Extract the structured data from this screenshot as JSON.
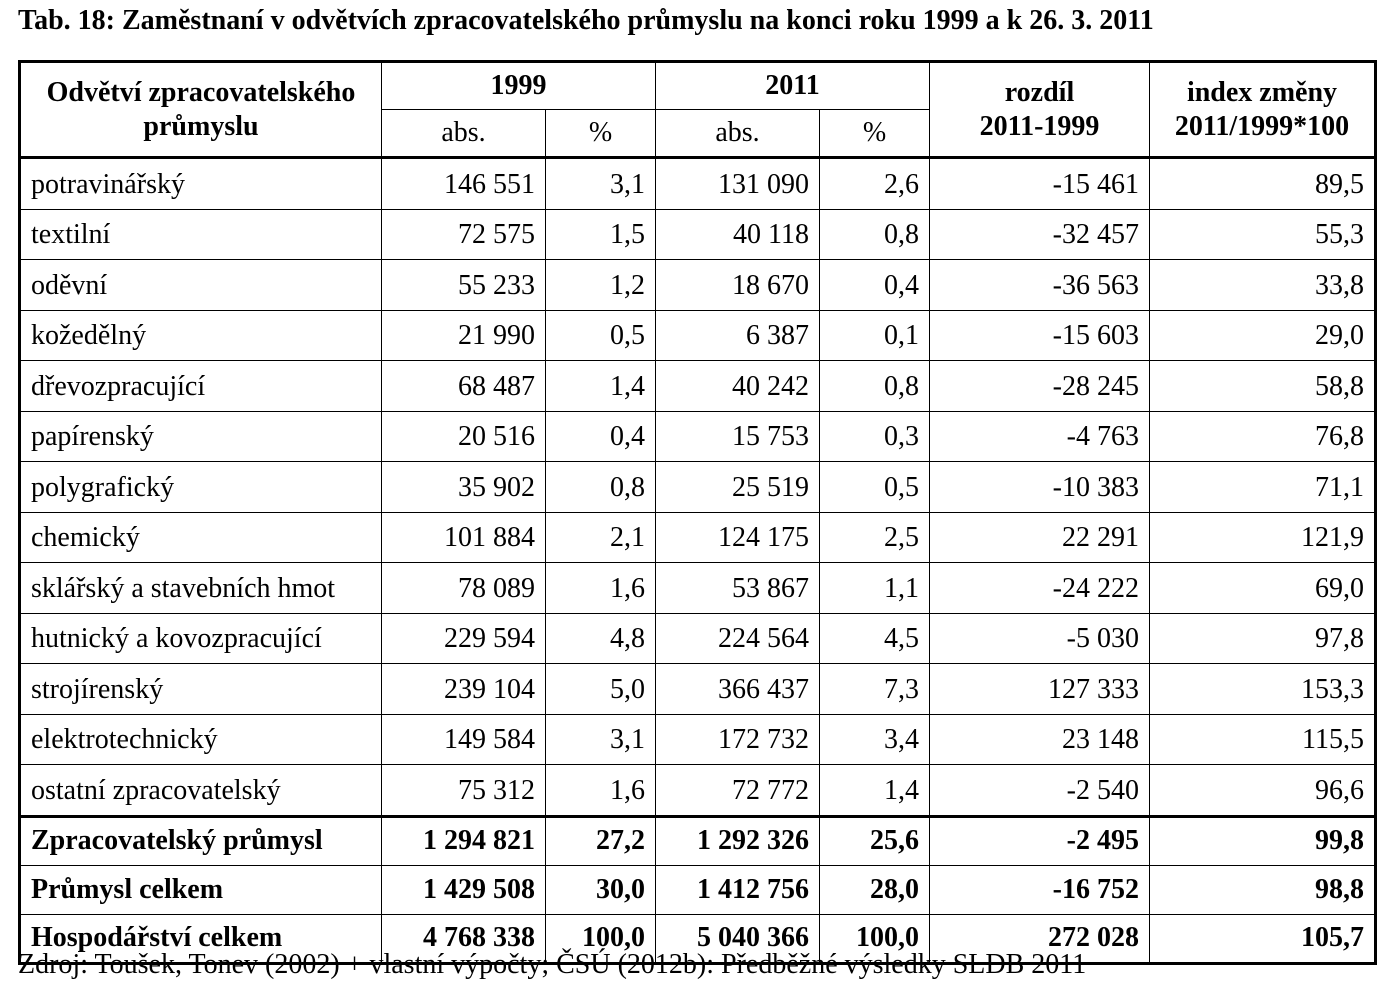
{
  "title": "Tab. 18: Zaměstnaní v odvětvích zpracovatelského průmyslu na konci roku 1999 a k 26. 3. 2011",
  "header": {
    "sector_line1": "Odvětví zpracovatelského",
    "sector_line2": "průmyslu",
    "year1": "1999",
    "year2": "2011",
    "abs": "abs.",
    "pct": "%",
    "diff_line1": "rozdíl",
    "diff_line2": "2011-1999",
    "index_line1": "index změny",
    "index_line2": "2011/1999*100"
  },
  "rows": [
    {
      "name": "potravinářský",
      "abs1999": "146 551",
      "pct1999": "3,1",
      "abs2011": "131 090",
      "pct2011": "2,6",
      "diff": "-15 461",
      "index": "89,5"
    },
    {
      "name": "textilní",
      "abs1999": "72 575",
      "pct1999": "1,5",
      "abs2011": "40 118",
      "pct2011": "0,8",
      "diff": "-32 457",
      "index": "55,3"
    },
    {
      "name": "oděvní",
      "abs1999": "55 233",
      "pct1999": "1,2",
      "abs2011": "18 670",
      "pct2011": "0,4",
      "diff": "-36 563",
      "index": "33,8"
    },
    {
      "name": "kožedělný",
      "abs1999": "21 990",
      "pct1999": "0,5",
      "abs2011": "6 387",
      "pct2011": "0,1",
      "diff": "-15 603",
      "index": "29,0"
    },
    {
      "name": "dřevozpracující",
      "abs1999": "68 487",
      "pct1999": "1,4",
      "abs2011": "40 242",
      "pct2011": "0,8",
      "diff": "-28 245",
      "index": "58,8"
    },
    {
      "name": "papírenský",
      "abs1999": "20 516",
      "pct1999": "0,4",
      "abs2011": "15 753",
      "pct2011": "0,3",
      "diff": "-4 763",
      "index": "76,8"
    },
    {
      "name": "polygrafický",
      "abs1999": "35 902",
      "pct1999": "0,8",
      "abs2011": "25 519",
      "pct2011": "0,5",
      "diff": "-10 383",
      "index": "71,1"
    },
    {
      "name": "chemický",
      "abs1999": "101 884",
      "pct1999": "2,1",
      "abs2011": "124 175",
      "pct2011": "2,5",
      "diff": "22 291",
      "index": "121,9"
    },
    {
      "name": "sklářský a stavebních hmot",
      "abs1999": "78 089",
      "pct1999": "1,6",
      "abs2011": "53 867",
      "pct2011": "1,1",
      "diff": "-24 222",
      "index": "69,0"
    },
    {
      "name": "hutnický a kovozpracující",
      "abs1999": "229 594",
      "pct1999": "4,8",
      "abs2011": "224 564",
      "pct2011": "4,5",
      "diff": "-5 030",
      "index": "97,8"
    },
    {
      "name": "strojírenský",
      "abs1999": "239 104",
      "pct1999": "5,0",
      "abs2011": "366 437",
      "pct2011": "7,3",
      "diff": "127 333",
      "index": "153,3"
    },
    {
      "name": "elektrotechnický",
      "abs1999": "149 584",
      "pct1999": "3,1",
      "abs2011": "172 732",
      "pct2011": "3,4",
      "diff": "23 148",
      "index": "115,5"
    },
    {
      "name": "ostatní zpracovatelský",
      "abs1999": "75 312",
      "pct1999": "1,6",
      "abs2011": "72 772",
      "pct2011": "1,4",
      "diff": "-2 540",
      "index": "96,6"
    }
  ],
  "totals": [
    {
      "name": "Zpracovatelský průmysl",
      "abs1999": "1 294 821",
      "pct1999": "27,2",
      "abs2011": "1 292 326",
      "pct2011": "25,6",
      "diff": "-2 495",
      "index": "99,8"
    },
    {
      "name": "Průmysl celkem",
      "abs1999": "1 429 508",
      "pct1999": "30,0",
      "abs2011": "1 412 756",
      "pct2011": "28,0",
      "diff": "-16 752",
      "index": "98,8"
    },
    {
      "name": "Hospodářství celkem",
      "abs1999": "4 768 338",
      "pct1999": "100,0",
      "abs2011": "5 040 366",
      "pct2011": "100,0",
      "diff": "272 028",
      "index": "105,7"
    }
  ],
  "source": "Zdroj: Toušek, Tonev (2002) + vlastní výpočty; ČSÚ (2012b): Předběžné výsledky SLDB 2011"
}
